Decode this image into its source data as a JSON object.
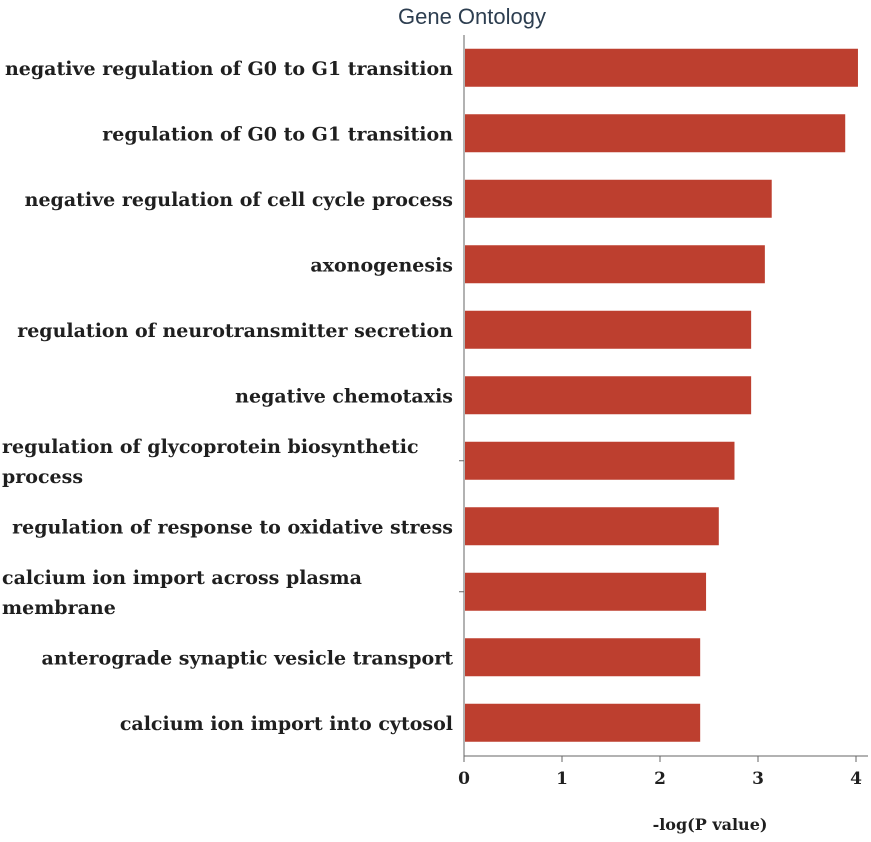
{
  "chart_data": {
    "type": "bar",
    "orientation": "horizontal",
    "title": "Gene Ontology",
    "xlabel": "-log(P value)",
    "ylabel": "",
    "categories": [
      "negative regulation of G0 to G1 transition",
      "regulation of G0 to G1 transition",
      "negative regulation of cell cycle process",
      "axonogenesis",
      "regulation of neurotransmitter secretion",
      "negative chemotaxis",
      "regulation of glycoprotein biosynthetic process",
      "regulation of response to oxidative stress",
      "calcium ion import across plasma membrane",
      "anterograde synaptic vesicle transport",
      "calcium ion import into cytosol"
    ],
    "values": [
      4.02,
      3.89,
      3.14,
      3.07,
      2.93,
      2.93,
      2.76,
      2.6,
      2.47,
      2.41,
      2.41
    ],
    "xlim": [
      0,
      4.1
    ],
    "xticks": [
      "0",
      "1",
      "2",
      "3",
      "4"
    ],
    "bar_color": "#bd3f2f",
    "grid": false,
    "legend": "none"
  }
}
